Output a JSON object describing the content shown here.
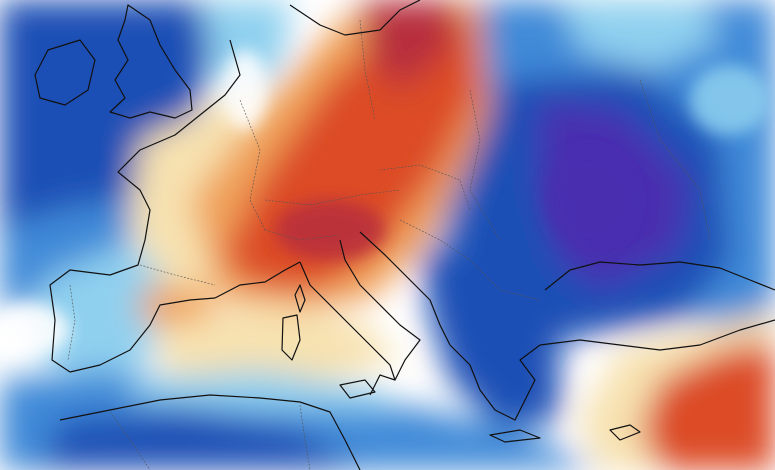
{
  "map": {
    "type": "temperature-anomaly",
    "region": "Europe",
    "palette": {
      "very_cold": "#4a2fb0",
      "cold": "#1f4fb5",
      "cool": "#3f8ad8",
      "mild_cool": "#8fd0ef",
      "neutral": "#ffffff",
      "mild_warm": "#f7e2b0",
      "warm": "#f0a25a",
      "hot": "#dc4b28",
      "very_hot": "#b72f3d",
      "coastline": "#111111",
      "border": "#555555"
    }
  }
}
